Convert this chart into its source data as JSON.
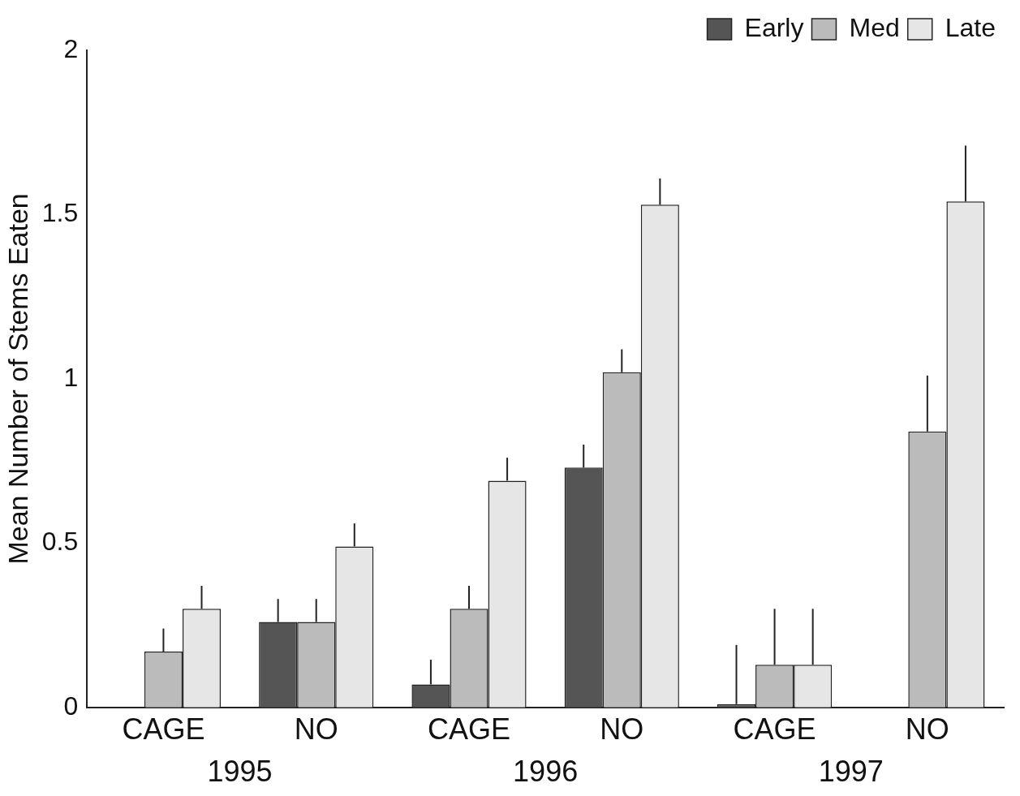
{
  "chart_data": {
    "type": "bar",
    "ylabel": "Mean Number of Stems Eaten",
    "categories": [
      "CAGE",
      "NO",
      "CAGE",
      "NO",
      "CAGE",
      "NO"
    ],
    "series": [
      {
        "name": "Early",
        "color": "#555555",
        "values": [
          null,
          0.26,
          0.07,
          0.73,
          0.01,
          null
        ],
        "errors": [
          null,
          [
            0.26,
            0.33
          ],
          [
            0.07,
            0.145
          ],
          [
            0.73,
            0.8
          ],
          [
            0.01,
            0.19
          ],
          null
        ]
      },
      {
        "name": "Med",
        "color": "#bbbbbb",
        "values": [
          0.17,
          0.26,
          0.3,
          1.02,
          0.13,
          0.84
        ],
        "errors": [
          [
            0.17,
            0.24
          ],
          [
            0.26,
            0.33
          ],
          [
            0.3,
            0.37
          ],
          [
            1.02,
            1.09
          ],
          [
            0.13,
            0.3
          ],
          [
            0.84,
            1.01
          ]
        ]
      },
      {
        "name": "Late",
        "color": "#e6e6e6",
        "values": [
          0.3,
          0.49,
          0.69,
          1.53,
          0.13,
          1.54
        ],
        "errors": [
          [
            0.3,
            0.37
          ],
          [
            0.49,
            0.56
          ],
          [
            0.69,
            0.76
          ],
          [
            1.53,
            1.61
          ],
          [
            0.13,
            0.3
          ],
          [
            1.54,
            1.71
          ]
        ]
      }
    ],
    "annotations": [
      "1995",
      "1996",
      "1997"
    ],
    "ylim": [
      0,
      2
    ],
    "yticks": [
      0,
      0.5,
      1,
      1.5,
      2
    ],
    "grid": false,
    "legend": "top right"
  }
}
